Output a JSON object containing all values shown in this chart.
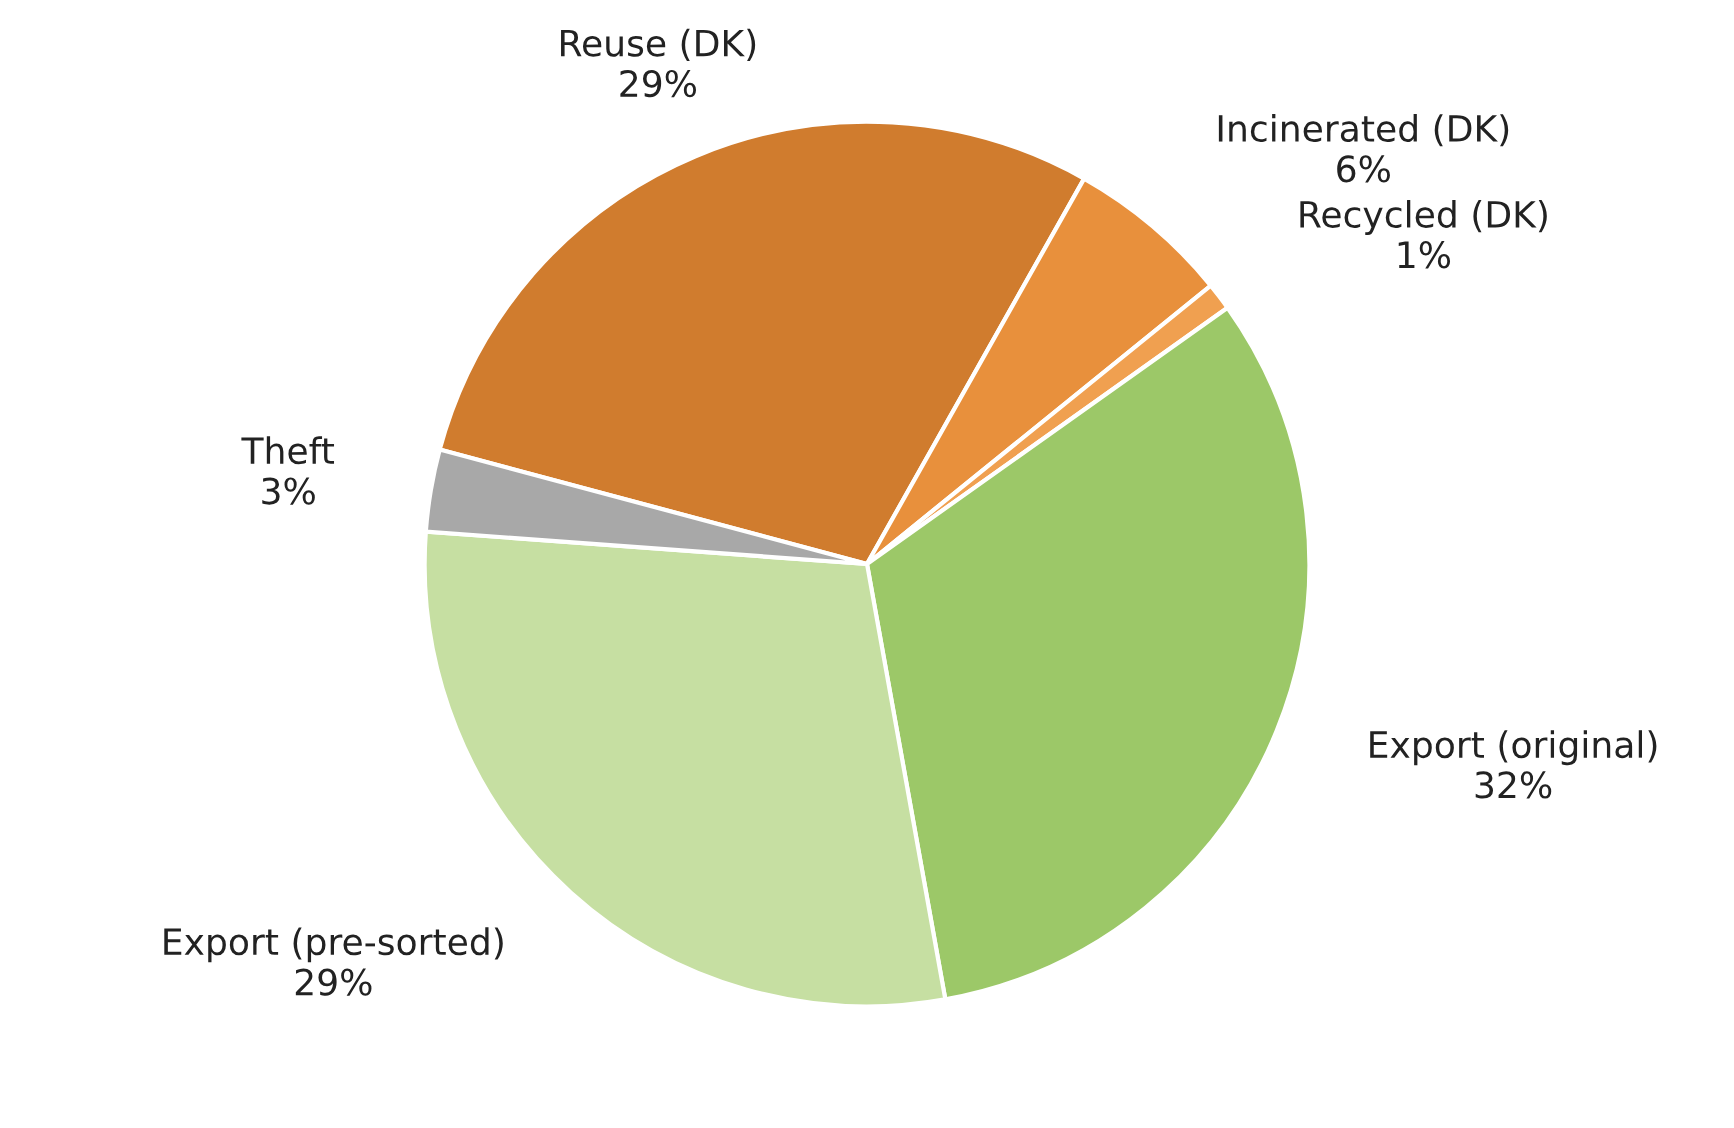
{
  "chart_data": {
    "type": "pie",
    "categories": [
      "Reuse (DK)",
      "Incinerated (DK)",
      "Recycled (DK)",
      "Export (original)",
      "Export (pre-sorted)",
      "Theft"
    ],
    "values": [
      29,
      6,
      1,
      32,
      29,
      3
    ],
    "value_labels": [
      "29%",
      "6%",
      "1%",
      "32%",
      "29%",
      "3%"
    ],
    "colors": [
      "#d07c2e",
      "#e8903c",
      "#f0a050",
      "#9cc868",
      "#c6dfa2",
      "#a8a8a8"
    ]
  }
}
